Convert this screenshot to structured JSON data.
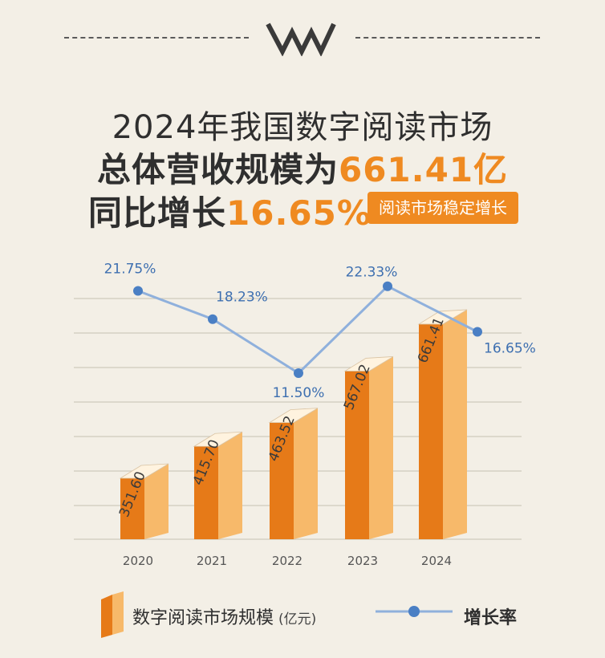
{
  "header": {
    "line1": "2024年我国数字阅读市场",
    "line2_prefix": "总体营收规模为",
    "line2_highlight": "661.41亿",
    "line3_prefix": "同比增长",
    "line3_highlight": "16.65%",
    "badge": "阅读市场稳定增长"
  },
  "colors": {
    "accent": "#ef8a21",
    "bar_light": "#f7b96a",
    "bar_dark": "#e67a18",
    "line": "#8fb0dc",
    "point": "#4a7fc4",
    "label_blue": "#3d6fb0",
    "grid": "#cfc9bd",
    "text": "#2f2f2f"
  },
  "chart_data": {
    "type": "bar",
    "categories": [
      "2020",
      "2021",
      "2022",
      "2023",
      "2024"
    ],
    "series": [
      {
        "name": "数字阅读市场规模",
        "unit": "(亿元)",
        "type": "bar",
        "values": [
          351.6,
          415.7,
          463.52,
          567.02,
          661.41
        ],
        "labels": [
          "351.60",
          "415.70",
          "463.52",
          "567.02",
          "661.41"
        ]
      },
      {
        "name": "增长率",
        "type": "line",
        "values": [
          21.75,
          18.23,
          11.5,
          22.33,
          16.65
        ],
        "labels": [
          "21.75%",
          "18.23%",
          "11.50%",
          "22.33%",
          "16.65%"
        ]
      }
    ],
    "grid": true,
    "legend": "bottom"
  },
  "legend": {
    "bar_label": "数字阅读市场规模",
    "bar_unit": "(亿元)",
    "line_label": "增长率"
  }
}
